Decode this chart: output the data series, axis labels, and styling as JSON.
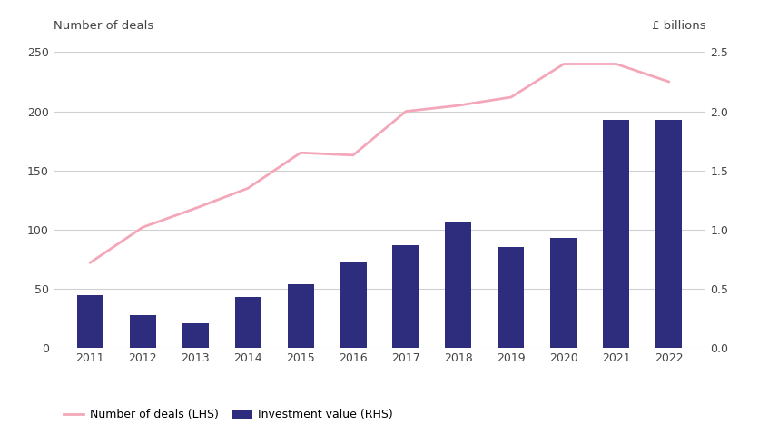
{
  "years": [
    2011,
    2012,
    2013,
    2014,
    2015,
    2016,
    2017,
    2018,
    2019,
    2020,
    2021,
    2022
  ],
  "num_deals": [
    72,
    102,
    118,
    135,
    165,
    163,
    200,
    205,
    212,
    240,
    240,
    225
  ],
  "invest_value_billions": [
    0.45,
    0.28,
    0.21,
    0.43,
    0.54,
    0.73,
    0.87,
    1.07,
    0.85,
    0.93,
    1.93,
    1.93
  ],
  "bar_color": "#2e2d7d",
  "line_color": "#f4a7b9",
  "lhs_label": "Number of deals",
  "rhs_label": "£ billions",
  "lhs_ylim": [
    0,
    250
  ],
  "rhs_ylim": [
    0,
    2.5
  ],
  "lhs_yticks": [
    0,
    50,
    100,
    150,
    200,
    250
  ],
  "rhs_yticks": [
    0.0,
    0.5,
    1.0,
    1.5,
    2.0,
    2.5
  ],
  "legend_line_label": "Number of deals (LHS)",
  "legend_bar_label": "Investment value (RHS)",
  "bg_color": "#ffffff",
  "grid_color": "#d0d0d0",
  "tick_color": "#444444",
  "label_color": "#444444"
}
